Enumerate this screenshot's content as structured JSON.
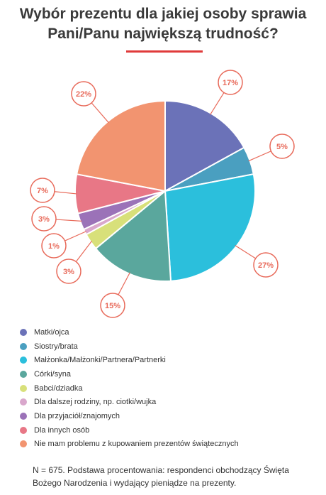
{
  "chart_data": {
    "type": "pie",
    "title": "Wybór prezentu dla jakiej osoby sprawia Pani/Panu największą trudność?",
    "slices": [
      {
        "label": "Matki/ojca",
        "value": 17,
        "value_label": "17%",
        "color": "#6b72b8"
      },
      {
        "label": "Siostry/brata",
        "value": 5,
        "value_label": "5%",
        "color": "#4a9fc0"
      },
      {
        "label": "Małżonka/Małżonki/Partnera/Partnerki",
        "value": 27,
        "value_label": "27%",
        "color": "#2bbfdc"
      },
      {
        "label": "Córki/syna",
        "value": 15,
        "value_label": "15%",
        "color": "#5aa79d"
      },
      {
        "label": "Babci/dziadka",
        "value": 3,
        "value_label": "3%",
        "color": "#d8e07a"
      },
      {
        "label": "Dla dalszej rodziny, np. ciotki/wujka",
        "value": 1,
        "value_label": "1%",
        "color": "#d9a7cc"
      },
      {
        "label": "Dla przyjaciół/znajomych",
        "value": 3,
        "value_label": "3%",
        "color": "#9b72b8"
      },
      {
        "label": "Dla innych osób",
        "value": 7,
        "value_label": "7%",
        "color": "#e87786"
      },
      {
        "label": "Nie mam problemu z kupowaniem prezentów świątecznych",
        "value": 22,
        "value_label": "22%",
        "color": "#f29470"
      }
    ],
    "legend_position": "bottom"
  },
  "footnote": "N = 675. Podstawa procentowania: respondenci obchodzący Święta Bożego Narodzenia i wydający pieniądze na prezenty.",
  "colors": {
    "accent": "#e03b3b",
    "callout": "#e86a5a"
  }
}
